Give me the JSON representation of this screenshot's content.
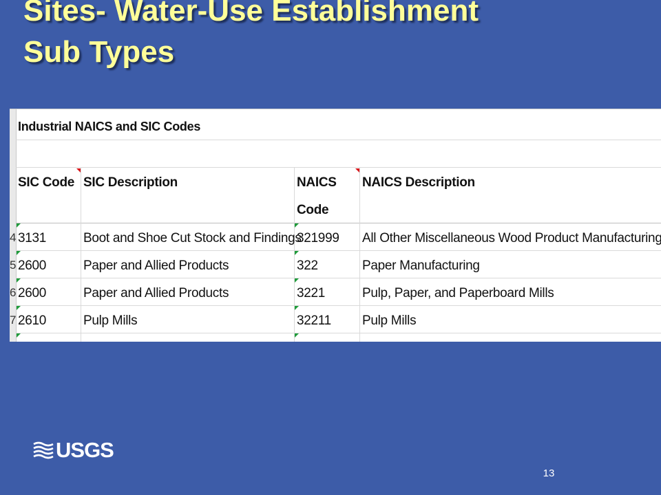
{
  "slide": {
    "title_line1": "Sites- Water-Use Establishment",
    "title_line2": "Sub Types",
    "page_number": "13",
    "logo_text": "USGS"
  },
  "sheet": {
    "table_title": "Industrial NAICS and SIC Codes",
    "headers": {
      "sic_code": "SIC Code",
      "sic_description": "SIC Description",
      "naics_code_line1": "NAICS",
      "naics_code_line2": "Code",
      "naics_description": "NAICS Description"
    },
    "rows": [
      {
        "row_num": "4",
        "sic": "3131",
        "sic_desc": "Boot and Shoe Cut Stock and Findings",
        "naics": "321999",
        "naics_desc": "All Other Miscellaneous Wood Product Manufacturing"
      },
      {
        "row_num": "5",
        "sic": "2600",
        "sic_desc": "Paper and Allied Products",
        "naics": "322",
        "naics_desc": "Paper Manufacturing"
      },
      {
        "row_num": "6",
        "sic": "2600",
        "sic_desc": "Paper and Allied Products",
        "naics": "3221",
        "naics_desc": "Pulp, Paper, and Paperboard Mills"
      },
      {
        "row_num": "7",
        "sic": "2610",
        "sic_desc": "Pulp Mills",
        "naics": "32211",
        "naics_desc": "Pulp Mills"
      }
    ]
  }
}
